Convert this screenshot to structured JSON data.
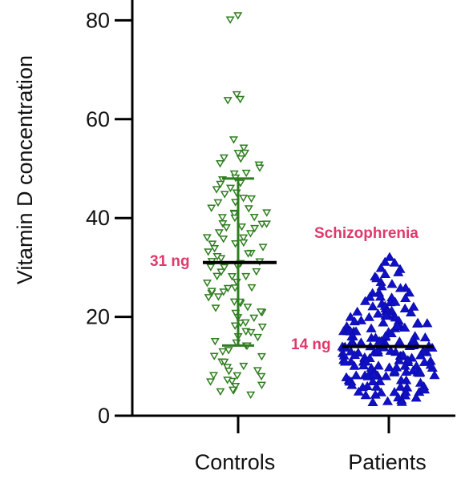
{
  "chart_data": {
    "type": "scatter",
    "ylabel": "Vitamin D concentration",
    "ylim": [
      0,
      80
    ],
    "yticks": [
      "0",
      "20",
      "40",
      "60",
      "80"
    ],
    "categories": [
      "Controls",
      "Patients"
    ],
    "grid": false,
    "series": [
      {
        "category": "Controls",
        "color": "#2e7d1f",
        "marker": "open-triangle-down",
        "mean": 31,
        "sd_lower": 14.2,
        "sd_upper": 48,
        "values": [
          81,
          80,
          65,
          64,
          64,
          56,
          54,
          53,
          53,
          52,
          52,
          51,
          51,
          50,
          49,
          49,
          48,
          48,
          47,
          47,
          46,
          46,
          45,
          45,
          44,
          44,
          43,
          43,
          42,
          42,
          41,
          41,
          41,
          40,
          40,
          40,
          39,
          39,
          39,
          38,
          38,
          38,
          37,
          37,
          36,
          36,
          36,
          35,
          35,
          35,
          34,
          34,
          33,
          33,
          33,
          32,
          32,
          31,
          31,
          31,
          30,
          30,
          30,
          29,
          29,
          28,
          28,
          28,
          27,
          27,
          26,
          26,
          26,
          25,
          25,
          25,
          24,
          24,
          23,
          23,
          23,
          22,
          22,
          21,
          21,
          21,
          20,
          20,
          19,
          19,
          18,
          18,
          17,
          17,
          16,
          16,
          15,
          15,
          14,
          14,
          13,
          13,
          12,
          12,
          11,
          11,
          10,
          10,
          9,
          9,
          8,
          8,
          8,
          7,
          7,
          7,
          6,
          6,
          5,
          5,
          5,
          4
        ]
      },
      {
        "category": "Patients",
        "color": "#1010c8",
        "marker": "filled-triangle-up",
        "mean": 14,
        "values": [
          32,
          31,
          31,
          30,
          30,
          29,
          29,
          28,
          28,
          27,
          27,
          26,
          26,
          26,
          25,
          25,
          25,
          24,
          24,
          24,
          24,
          23,
          23,
          23,
          23,
          22,
          22,
          22,
          22,
          22,
          21,
          21,
          21,
          21,
          21,
          21,
          20,
          20,
          20,
          20,
          20,
          20,
          19,
          19,
          19,
          19,
          19,
          19,
          19,
          18,
          18,
          18,
          18,
          18,
          18,
          18,
          17,
          17,
          17,
          17,
          17,
          17,
          17,
          17,
          16,
          16,
          16,
          16,
          16,
          16,
          16,
          16,
          15,
          15,
          15,
          15,
          15,
          15,
          15,
          15,
          15,
          14,
          14,
          14,
          14,
          14,
          14,
          14,
          14,
          14,
          14,
          13,
          13,
          13,
          13,
          13,
          13,
          13,
          13,
          13,
          13,
          12,
          12,
          12,
          12,
          12,
          12,
          12,
          12,
          12,
          12,
          11,
          11,
          11,
          11,
          11,
          11,
          11,
          11,
          11,
          11,
          10,
          10,
          10,
          10,
          10,
          10,
          10,
          10,
          10,
          10,
          9,
          9,
          9,
          9,
          9,
          9,
          9,
          9,
          9,
          8,
          8,
          8,
          8,
          8,
          8,
          8,
          8,
          8,
          7,
          7,
          7,
          7,
          7,
          7,
          7,
          7,
          6,
          6,
          6,
          6,
          6,
          6,
          6,
          5,
          5,
          5,
          5,
          5,
          5,
          4,
          4,
          4,
          4,
          4,
          3,
          3,
          3,
          3
        ]
      }
    ],
    "annotations": [
      {
        "text": "31 ng",
        "target": "Controls mean"
      },
      {
        "text": "14 ng",
        "target": "Patients mean"
      },
      {
        "text": "Schizophrenia",
        "target": "Patients group"
      }
    ]
  }
}
